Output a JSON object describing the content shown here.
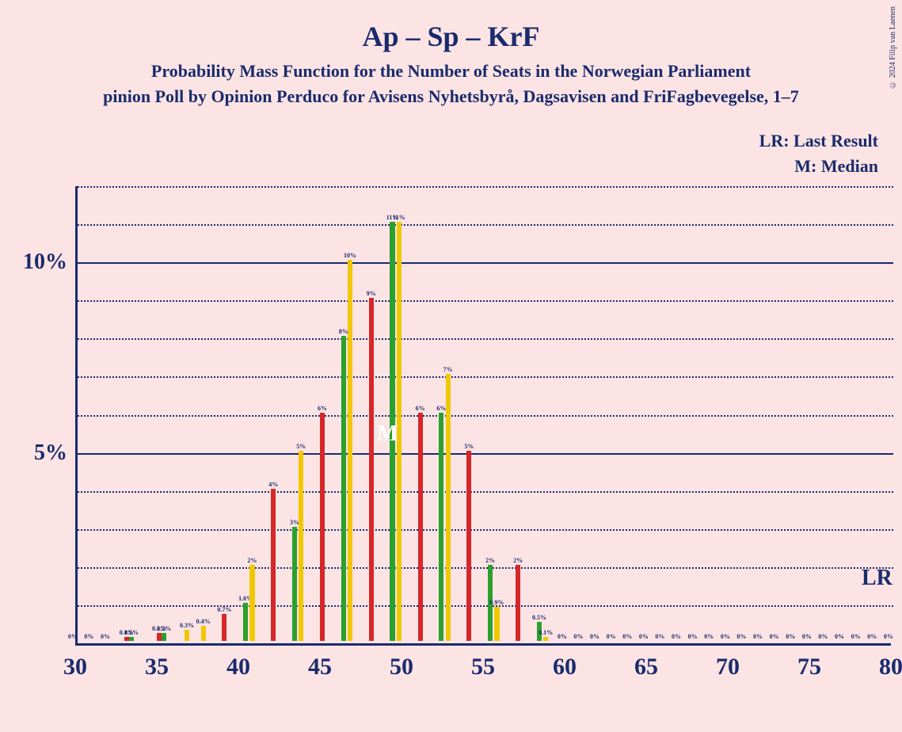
{
  "title": "Ap – Sp – KrF",
  "subtitle": "Probability Mass Function for the Number of Seats in the Norwegian Parliament",
  "subtitle2": "pinion Poll by Opinion Perduco for Avisens Nyhetsbyrå, Dagsavisen and FriFagbevegelse, 1–7",
  "legend_lr": "LR: Last Result",
  "legend_m": "M: Median",
  "copyright": "© 2024 Filip van Laenen",
  "chart": {
    "type": "bar",
    "background_color": "#fce4e4",
    "axis_color": "#1a2b6d",
    "grid_color": "#1a2b6d",
    "text_color": "#1a2b6d",
    "x_min": 30,
    "x_max": 80,
    "y_min": 0,
    "y_max": 12,
    "y_major_ticks": [
      5,
      10
    ],
    "y_minor_step": 1,
    "x_tick_step": 5,
    "x_ticks": [
      30,
      35,
      40,
      45,
      50,
      55,
      60,
      65,
      70,
      75,
      80
    ],
    "y_tick_labels": {
      "5": "5%",
      "10": "10%"
    },
    "median_x": 49,
    "median_text": "M",
    "lr_x": 79,
    "lr_text": "LR",
    "series_colors": [
      "#f0c800",
      "#d62728",
      "#2ca02c"
    ],
    "bar_group_width": 0.9,
    "data": [
      {
        "x": 30,
        "vals": [
          0,
          0,
          0
        ],
        "labels": [
          "0%",
          null,
          null
        ]
      },
      {
        "x": 31,
        "vals": [
          0,
          0,
          0
        ],
        "labels": [
          "0%",
          null,
          null
        ]
      },
      {
        "x": 32,
        "vals": [
          0,
          0,
          0
        ],
        "labels": [
          "0%",
          null,
          null
        ]
      },
      {
        "x": 33,
        "vals": [
          0,
          0.1,
          0.1
        ],
        "labels": [
          null,
          "0.1%",
          "0.1%"
        ]
      },
      {
        "x": 34,
        "vals": [
          0,
          0,
          0
        ],
        "labels": [
          null,
          null,
          null
        ]
      },
      {
        "x": 35,
        "vals": [
          0,
          0.2,
          0.2
        ],
        "labels": [
          null,
          "0.2%",
          "0.2%"
        ]
      },
      {
        "x": 36,
        "vals": [
          0,
          0,
          0
        ],
        "labels": [
          null,
          null,
          null
        ]
      },
      {
        "x": 37,
        "vals": [
          0.3,
          0,
          0
        ],
        "labels": [
          "0.3%",
          null,
          null
        ]
      },
      {
        "x": 38,
        "vals": [
          0.4,
          0,
          0
        ],
        "labels": [
          "0.4%",
          null,
          null
        ]
      },
      {
        "x": 39,
        "vals": [
          0,
          0.7,
          0
        ],
        "labels": [
          null,
          "0.7%",
          null
        ]
      },
      {
        "x": 40,
        "vals": [
          0,
          0,
          1.0
        ],
        "labels": [
          null,
          null,
          "1.0%"
        ]
      },
      {
        "x": 41,
        "vals": [
          2,
          0,
          0
        ],
        "labels": [
          "2%",
          null,
          null
        ]
      },
      {
        "x": 42,
        "vals": [
          0,
          4,
          0
        ],
        "labels": [
          null,
          "4%",
          null
        ]
      },
      {
        "x": 43,
        "vals": [
          0,
          0,
          3
        ],
        "labels": [
          null,
          null,
          "3%"
        ]
      },
      {
        "x": 44,
        "vals": [
          5,
          0,
          0
        ],
        "labels": [
          "5%",
          null,
          null
        ]
      },
      {
        "x": 45,
        "vals": [
          0,
          6,
          0
        ],
        "labels": [
          null,
          "6%",
          null
        ]
      },
      {
        "x": 46,
        "vals": [
          0,
          0,
          8
        ],
        "labels": [
          null,
          null,
          "8%"
        ]
      },
      {
        "x": 47,
        "vals": [
          10,
          0,
          0
        ],
        "labels": [
          "10%",
          null,
          null
        ]
      },
      {
        "x": 48,
        "vals": [
          0,
          9,
          0
        ],
        "labels": [
          null,
          "9%",
          null
        ]
      },
      {
        "x": 49,
        "vals": [
          0,
          0,
          11
        ],
        "labels": [
          null,
          null,
          "11%"
        ]
      },
      {
        "x": 50,
        "vals": [
          11,
          0,
          0
        ],
        "labels": [
          "11%",
          null,
          null
        ]
      },
      {
        "x": 51,
        "vals": [
          0,
          6,
          0
        ],
        "labels": [
          null,
          "6%",
          null
        ]
      },
      {
        "x": 52,
        "vals": [
          0,
          0,
          6
        ],
        "labels": [
          null,
          null,
          "6%"
        ]
      },
      {
        "x": 53,
        "vals": [
          7,
          0,
          0
        ],
        "labels": [
          "7%",
          null,
          null
        ]
      },
      {
        "x": 54,
        "vals": [
          0,
          5,
          0
        ],
        "labels": [
          null,
          "5%",
          null
        ]
      },
      {
        "x": 55,
        "vals": [
          0,
          0,
          2
        ],
        "labels": [
          null,
          null,
          "2%"
        ]
      },
      {
        "x": 56,
        "vals": [
          0.9,
          0,
          0
        ],
        "labels": [
          "0.9%",
          null,
          null
        ]
      },
      {
        "x": 57,
        "vals": [
          0,
          2,
          0
        ],
        "labels": [
          null,
          "2%",
          null
        ]
      },
      {
        "x": 58,
        "vals": [
          0,
          0,
          0.5
        ],
        "labels": [
          null,
          null,
          "0.5%"
        ]
      },
      {
        "x": 59,
        "vals": [
          0.1,
          0,
          0
        ],
        "labels": [
          "0.1%",
          null,
          null
        ]
      },
      {
        "x": 60,
        "vals": [
          0,
          0,
          0
        ],
        "labels": [
          "0%",
          null,
          null
        ]
      },
      {
        "x": 61,
        "vals": [
          0,
          0,
          0
        ],
        "labels": [
          "0%",
          null,
          null
        ]
      },
      {
        "x": 62,
        "vals": [
          0,
          0,
          0
        ],
        "labels": [
          "0%",
          null,
          null
        ]
      },
      {
        "x": 63,
        "vals": [
          0,
          0,
          0
        ],
        "labels": [
          "0%",
          null,
          null
        ]
      },
      {
        "x": 64,
        "vals": [
          0,
          0,
          0
        ],
        "labels": [
          "0%",
          null,
          null
        ]
      },
      {
        "x": 65,
        "vals": [
          0,
          0,
          0
        ],
        "labels": [
          "0%",
          null,
          null
        ]
      },
      {
        "x": 66,
        "vals": [
          0,
          0,
          0
        ],
        "labels": [
          "0%",
          null,
          null
        ]
      },
      {
        "x": 67,
        "vals": [
          0,
          0,
          0
        ],
        "labels": [
          "0%",
          null,
          null
        ]
      },
      {
        "x": 68,
        "vals": [
          0,
          0,
          0
        ],
        "labels": [
          "0%",
          null,
          null
        ]
      },
      {
        "x": 69,
        "vals": [
          0,
          0,
          0
        ],
        "labels": [
          "0%",
          null,
          null
        ]
      },
      {
        "x": 70,
        "vals": [
          0,
          0,
          0
        ],
        "labels": [
          "0%",
          null,
          null
        ]
      },
      {
        "x": 71,
        "vals": [
          0,
          0,
          0
        ],
        "labels": [
          "0%",
          null,
          null
        ]
      },
      {
        "x": 72,
        "vals": [
          0,
          0,
          0
        ],
        "labels": [
          "0%",
          null,
          null
        ]
      },
      {
        "x": 73,
        "vals": [
          0,
          0,
          0
        ],
        "labels": [
          "0%",
          null,
          null
        ]
      },
      {
        "x": 74,
        "vals": [
          0,
          0,
          0
        ],
        "labels": [
          "0%",
          null,
          null
        ]
      },
      {
        "x": 75,
        "vals": [
          0,
          0,
          0
        ],
        "labels": [
          "0%",
          null,
          null
        ]
      },
      {
        "x": 76,
        "vals": [
          0,
          0,
          0
        ],
        "labels": [
          "0%",
          null,
          null
        ]
      },
      {
        "x": 77,
        "vals": [
          0,
          0,
          0
        ],
        "labels": [
          "0%",
          null,
          null
        ]
      },
      {
        "x": 78,
        "vals": [
          0,
          0,
          0
        ],
        "labels": [
          "0%",
          null,
          null
        ]
      },
      {
        "x": 79,
        "vals": [
          0,
          0,
          0
        ],
        "labels": [
          "0%",
          null,
          null
        ]
      },
      {
        "x": 80,
        "vals": [
          0,
          0,
          0
        ],
        "labels": [
          "0%",
          null,
          null
        ]
      }
    ]
  }
}
